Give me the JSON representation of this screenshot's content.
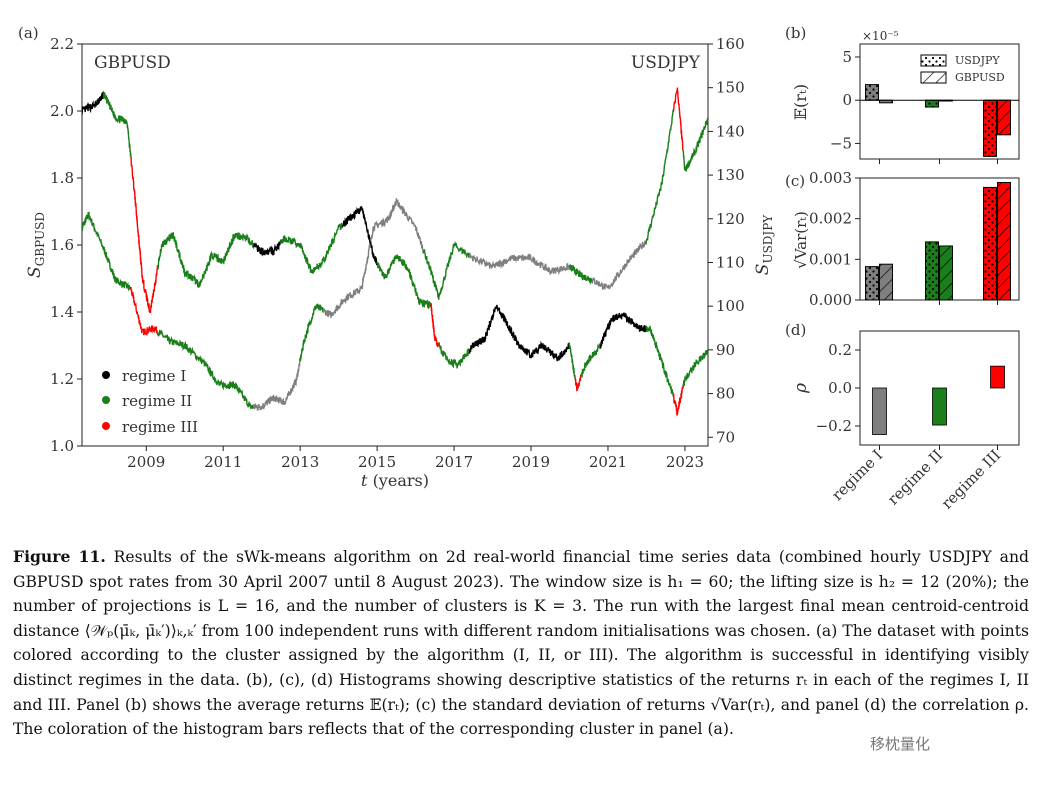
{
  "panels": {
    "a": {
      "label": "(a)",
      "left_series": "GBPUSD",
      "right_series": "USDJPY",
      "ylabel_left": "S",
      "ylabel_left_sub": "GBPUSD",
      "ylabel_right": "S",
      "ylabel_right_sub": "USDJPY",
      "xlabel_var": "t",
      "xlabel_unit": "(years)",
      "legend": [
        {
          "label": "regime I",
          "color": "#000000"
        },
        {
          "label": "regime II",
          "color": "#1a7f1a"
        },
        {
          "label": "regime III",
          "color": "#ff0000"
        }
      ]
    },
    "b": {
      "label": "(b)",
      "exponent": "×10⁻⁵",
      "ylabel": "𝔼(rₜ)",
      "legend": [
        "USDJPY",
        "GBPUSD"
      ]
    },
    "c": {
      "label": "(c)",
      "ylabel": "√Var(rₜ)"
    },
    "d": {
      "label": "(d)",
      "ylabel": "ρ"
    }
  },
  "chart_data": [
    {
      "type": "line",
      "title": "GBPUSD / USDJPY spot rates",
      "xlabel": "t (years)",
      "ylabel": "S_GBPUSD",
      "ylabel_right": "S_USDJPY",
      "xticks": [
        "2009",
        "2011",
        "2013",
        "2015",
        "2017",
        "2019",
        "2021",
        "2023"
      ],
      "xlim": [
        2007.33,
        2023.6
      ],
      "ylim": [
        1.0,
        2.2
      ],
      "yticks": [
        "1.0",
        "1.2",
        "1.4",
        "1.6",
        "1.8",
        "2.0",
        "2.2"
      ],
      "ylim_right": [
        68,
        160
      ],
      "yticks_right": [
        "70",
        "80",
        "90",
        "100",
        "110",
        "120",
        "130",
        "140",
        "150",
        "160"
      ],
      "series": [
        {
          "name": "GBPUSD",
          "axis": "left",
          "x": [
            2007.33,
            2007.7,
            2007.9,
            2008.2,
            2008.5,
            2008.7,
            2008.9,
            2009.1,
            2009.4,
            2009.7,
            2010.0,
            2010.4,
            2010.7,
            2011.0,
            2011.3,
            2011.6,
            2012.0,
            2012.3,
            2012.6,
            2013.0,
            2013.3,
            2013.6,
            2014.0,
            2014.3,
            2014.6,
            2014.9,
            2015.2,
            2015.5,
            2015.8,
            2016.1,
            2016.4,
            2016.5,
            2016.8,
            2017.1,
            2017.5,
            2017.8,
            2018.1,
            2018.4,
            2018.7,
            2019.0,
            2019.3,
            2019.7,
            2020.0,
            2020.2,
            2020.4,
            2020.8,
            2021.1,
            2021.4,
            2021.8,
            2022.1,
            2022.4,
            2022.7,
            2022.8,
            2023.0,
            2023.3,
            2023.6
          ],
          "y": [
            2.0,
            2.02,
            2.05,
            1.98,
            1.97,
            1.75,
            1.5,
            1.4,
            1.6,
            1.63,
            1.52,
            1.48,
            1.57,
            1.55,
            1.63,
            1.62,
            1.58,
            1.58,
            1.62,
            1.6,
            1.52,
            1.55,
            1.65,
            1.68,
            1.71,
            1.57,
            1.5,
            1.57,
            1.53,
            1.43,
            1.42,
            1.32,
            1.26,
            1.24,
            1.3,
            1.32,
            1.42,
            1.36,
            1.3,
            1.27,
            1.3,
            1.26,
            1.3,
            1.17,
            1.24,
            1.3,
            1.38,
            1.39,
            1.35,
            1.35,
            1.25,
            1.15,
            1.1,
            1.2,
            1.25,
            1.28
          ]
        },
        {
          "name": "USDJPY",
          "axis": "right",
          "x": [
            2007.33,
            2007.5,
            2007.9,
            2008.2,
            2008.6,
            2008.9,
            2009.2,
            2009.6,
            2010.0,
            2010.5,
            2010.9,
            2011.3,
            2011.7,
            2012.0,
            2012.3,
            2012.6,
            2012.9,
            2013.1,
            2013.4,
            2013.8,
            2014.2,
            2014.6,
            2014.9,
            2015.3,
            2015.5,
            2016.0,
            2016.4,
            2016.6,
            2017.0,
            2017.5,
            2018.0,
            2018.5,
            2019.0,
            2019.5,
            2020.0,
            2020.3,
            2020.6,
            2021.0,
            2021.5,
            2022.0,
            2022.4,
            2022.8,
            2023.0,
            2023.3,
            2023.6
          ],
          "y": [
            118,
            121,
            113,
            106,
            104,
            94,
            95,
            92,
            91,
            87,
            82,
            82,
            77,
            77,
            79,
            78,
            83,
            92,
            100,
            98,
            102,
            104,
            118,
            120,
            124,
            118,
            108,
            102,
            114,
            111,
            109,
            111,
            111,
            108,
            109,
            107,
            106,
            104,
            110,
            115,
            128,
            150,
            131,
            136,
            143
          ]
        }
      ],
      "regime_colors": {
        "regime I": "#000000",
        "regime II": "#1a7f1a",
        "regime III": "#ff0000"
      }
    },
    {
      "type": "bar",
      "title": "(b) average returns",
      "ylabel": "E(r_t)",
      "scale_note": "x10^-5",
      "categories": [
        "regime I",
        "regime II",
        "regime III"
      ],
      "series": [
        {
          "name": "USDJPY",
          "values": [
            1.8,
            -0.8,
            -6.5
          ]
        },
        {
          "name": "GBPUSD",
          "values": [
            -0.3,
            -0.1,
            -4.0
          ]
        }
      ],
      "ylim": [
        -6.8,
        6.5
      ],
      "yticks": [
        "−5",
        "0",
        "5"
      ]
    },
    {
      "type": "bar",
      "title": "(c) standard deviation of returns",
      "ylabel": "sqrt(Var(r_t))",
      "categories": [
        "regime I",
        "regime II",
        "regime III"
      ],
      "series": [
        {
          "name": "USDJPY",
          "values": [
            0.00082,
            0.00143,
            0.00277
          ]
        },
        {
          "name": "GBPUSD",
          "values": [
            0.00088,
            0.00133,
            0.00289
          ]
        }
      ],
      "ylim": [
        0,
        0.003
      ],
      "yticks": [
        "0.000",
        "0.001",
        "0.002",
        "0.003"
      ]
    },
    {
      "type": "bar",
      "title": "(d) correlation",
      "ylabel": "rho",
      "categories": [
        "regime I",
        "regime II",
        "regime III"
      ],
      "values": [
        -0.245,
        -0.195,
        0.115
      ],
      "ylim": [
        -0.3,
        0.3
      ],
      "yticks": [
        "−0.2",
        "0.0",
        "0.2"
      ],
      "colors": [
        "#7f7f7f",
        "#1a7f1a",
        "#ff0000"
      ]
    }
  ],
  "caption": {
    "label": "Figure 11.",
    "text": "Results of the sWk-means algorithm on 2d real-world financial time series data (combined hourly USDJPY and GBPUSD spot rates from 30 April 2007 until 8 August 2023). The window size is h₁ = 60; the lifting size is h₂ = 12 (20%); the number of projections is L = 16, and the number of clusters is K = 3. The run with the largest final mean centroid-centroid distance ⟨𝒲ₚ(μ̄ₖ, μ̄ₖ′)⟩ₖ,ₖ′ from 100 independent runs with different random initialisations was chosen. (a) The dataset with points colored according to the cluster assigned by the algorithm (I, II, or III). The algorithm is successful in identifying visibly distinct regimes in the data. (b), (c), (d) Histograms showing descriptive statistics of the returns rₜ in each of the regimes I, II and III. Panel (b) shows the average returns 𝔼(rₜ); (c) the standard deviation of returns √Var(rₜ), and panel (d) the correlation ρ. The coloration of the histogram bars reflects that of the corresponding cluster in panel (a)."
  },
  "watermark": "移枕量化"
}
